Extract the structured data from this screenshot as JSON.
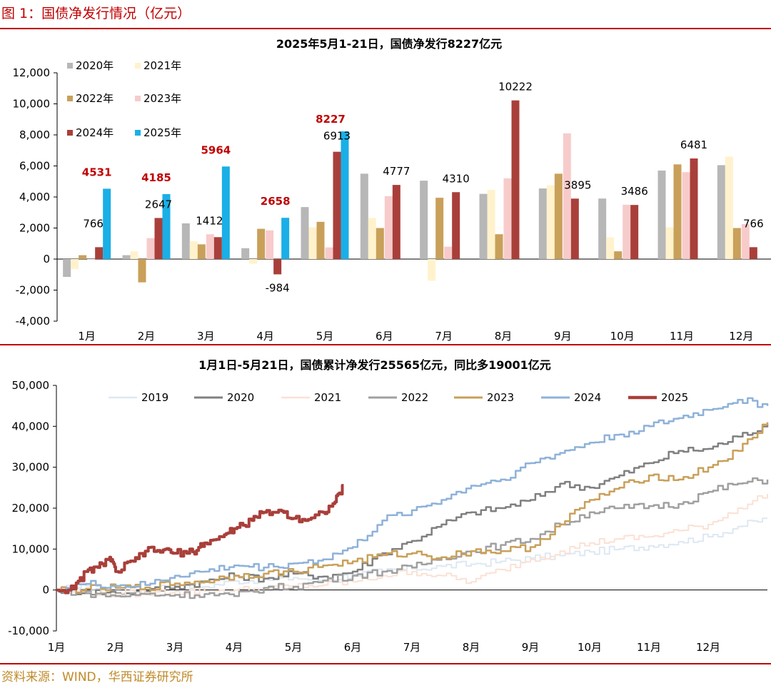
{
  "figure_title": "图 1：国债净发行情况（亿元）",
  "source": "资料来源：WIND，华西证券研究所",
  "chart_data": [
    {
      "type": "bar",
      "title": "2025年5月1-21日，国债净发行8227亿元",
      "categories": [
        "1月",
        "2月",
        "3月",
        "4月",
        "5月",
        "6月",
        "7月",
        "8月",
        "9月",
        "10月",
        "11月",
        "12月"
      ],
      "y_tick_labels": [
        "12,000",
        "10,000",
        "8,000",
        "6,000",
        "4,000",
        "2,000",
        "0",
        "-2,000",
        "-4,000"
      ],
      "ylim": [
        -4000,
        12000
      ],
      "legend_placement": "top-left",
      "grid": false,
      "series": [
        {
          "name": "2020年",
          "color": "#b7b7b7",
          "values": [
            -1150,
            250,
            2300,
            700,
            3350,
            5500,
            5050,
            4200,
            4550,
            3900,
            5700,
            6050
          ]
        },
        {
          "name": "2021年",
          "color": "#fff2cc",
          "values": [
            -650,
            500,
            1150,
            -300,
            2050,
            2650,
            -1400,
            4450,
            4750,
            1400,
            2050,
            6600
          ]
        },
        {
          "name": "2022年",
          "color": "#c9a05a",
          "values": [
            250,
            -1500,
            950,
            1950,
            2400,
            2000,
            3950,
            1600,
            5500,
            500,
            6100,
            2000
          ]
        },
        {
          "name": "2023年",
          "color": "#f8cbcb",
          "values": [
            0,
            1350,
            1600,
            1850,
            750,
            4050,
            800,
            5200,
            8100,
            3500,
            5600,
            2250
          ]
        },
        {
          "name": "2024年",
          "color": "#a93f3a",
          "values": [
            766,
            2647,
            1412,
            -984,
            6913,
            4777,
            4310,
            10222,
            3895,
            3486,
            6481,
            766
          ]
        },
        {
          "name": "2025年",
          "color": "#1aafe6",
          "values": [
            4531,
            4185,
            5964,
            2658,
            8227,
            null,
            null,
            null,
            null,
            null,
            null,
            null
          ]
        }
      ],
      "data_labels_2024": [
        "766",
        "2647",
        "1412",
        "-984",
        "6913",
        "4777",
        "4310",
        "10222",
        "3895",
        "3486",
        "6481",
        "766"
      ],
      "data_labels_2025": [
        "4531",
        "4185",
        "5964",
        "2658",
        "8227"
      ]
    },
    {
      "type": "line",
      "title": "1月1日-5月21日，国债累计净发行25565亿元，同比多19001亿元",
      "x_tick_labels": [
        "1月",
        "2月",
        "3月",
        "4月",
        "5月",
        "6月",
        "7月",
        "8月",
        "9月",
        "10月",
        "11月",
        "12月"
      ],
      "y_tick_labels": [
        "50,000",
        "40,000",
        "30,000",
        "20,000",
        "10,000",
        "0",
        "-10,000"
      ],
      "ylim": [
        -10000,
        50000
      ],
      "xlim": [
        0,
        12
      ],
      "legend_placement": "top",
      "grid": false,
      "series": [
        {
          "name": "2019",
          "color": "#dde8f3",
          "width": 2,
          "points": [
            [
              0,
              0
            ],
            [
              0.5,
              1000
            ],
            [
              1,
              -200
            ],
            [
              1.5,
              300
            ],
            [
              2,
              1200
            ],
            [
              2.5,
              800
            ],
            [
              3,
              2200
            ],
            [
              3.5,
              2600
            ],
            [
              4,
              3000
            ],
            [
              4.5,
              2400
            ],
            [
              5,
              3800
            ],
            [
              5.5,
              4500
            ],
            [
              6,
              5200
            ],
            [
              6.5,
              5800
            ],
            [
              7,
              6300
            ],
            [
              7.5,
              7000
            ],
            [
              8,
              7800
            ],
            [
              8.5,
              8400
            ],
            [
              9,
              9300
            ],
            [
              9.5,
              10000
            ],
            [
              10,
              10800
            ],
            [
              10.5,
              11800
            ],
            [
              11,
              13000
            ],
            [
              11.5,
              15500
            ],
            [
              12,
              17500
            ]
          ]
        },
        {
          "name": "2020",
          "color": "#808080",
          "width": 2.5,
          "points": [
            [
              0,
              0
            ],
            [
              0.5,
              -400
            ],
            [
              1,
              -800
            ],
            [
              1.5,
              -300
            ],
            [
              2,
              800
            ],
            [
              2.5,
              2000
            ],
            [
              3,
              3500
            ],
            [
              3.5,
              2800
            ],
            [
              4,
              4000
            ],
            [
              4.5,
              3300
            ],
            [
              5,
              4500
            ],
            [
              5.5,
              9000
            ],
            [
              6,
              12000
            ],
            [
              6.5,
              16000
            ],
            [
              7,
              19000
            ],
            [
              7.5,
              20000
            ],
            [
              8,
              22000
            ],
            [
              8.5,
              26000
            ],
            [
              9,
              25000
            ],
            [
              9.5,
              28000
            ],
            [
              10,
              31000
            ],
            [
              10.5,
              34000
            ],
            [
              11,
              34500
            ],
            [
              11.5,
              37500
            ],
            [
              12,
              40500
            ]
          ]
        },
        {
          "name": "2021",
          "color": "#fbe1d4",
          "width": 2,
          "points": [
            [
              0,
              0
            ],
            [
              0.5,
              -600
            ],
            [
              1,
              -1000
            ],
            [
              1.5,
              -700
            ],
            [
              2,
              -400
            ],
            [
              2.5,
              -300
            ],
            [
              3,
              0
            ],
            [
              3.5,
              300
            ],
            [
              4,
              900
            ],
            [
              4.5,
              1200
            ],
            [
              5,
              2000
            ],
            [
              5.5,
              3500
            ],
            [
              6,
              4500
            ],
            [
              6.5,
              3500
            ],
            [
              7,
              2000
            ],
            [
              7.5,
              5000
            ],
            [
              8,
              7500
            ],
            [
              8.5,
              9500
            ],
            [
              9,
              11500
            ],
            [
              9.5,
              12500
            ],
            [
              10,
              13000
            ],
            [
              10.5,
              14500
            ],
            [
              11,
              16000
            ],
            [
              11.5,
              20000
            ],
            [
              12,
              23500
            ]
          ]
        },
        {
          "name": "2022",
          "color": "#a0a0a0",
          "width": 2.5,
          "points": [
            [
              0,
              0
            ],
            [
              0.5,
              -800
            ],
            [
              1,
              -1500
            ],
            [
              1.5,
              -1000
            ],
            [
              2,
              -1200
            ],
            [
              2.5,
              -1000
            ],
            [
              3,
              -1500
            ],
            [
              3.5,
              500
            ],
            [
              4,
              800
            ],
            [
              4.5,
              2300
            ],
            [
              5,
              3500
            ],
            [
              5.5,
              4500
            ],
            [
              6,
              5500
            ],
            [
              6.5,
              8000
            ],
            [
              7,
              9500
            ],
            [
              7.5,
              11000
            ],
            [
              8,
              12500
            ],
            [
              8.5,
              16000
            ],
            [
              9,
              19000
            ],
            [
              9.5,
              20000
            ],
            [
              10,
              20500
            ],
            [
              10.5,
              21000
            ],
            [
              11,
              24000
            ],
            [
              11.5,
              26000
            ],
            [
              12,
              27000
            ]
          ]
        },
        {
          "name": "2023",
          "color": "#c9a05a",
          "width": 2.5,
          "points": [
            [
              0,
              0
            ],
            [
              0.5,
              300
            ],
            [
              1,
              500
            ],
            [
              1.5,
              600
            ],
            [
              2,
              1600
            ],
            [
              2.5,
              2200
            ],
            [
              3,
              3500
            ],
            [
              3.5,
              4000
            ],
            [
              4,
              4500
            ],
            [
              4.5,
              6000
            ],
            [
              5,
              7000
            ],
            [
              5.5,
              8500
            ],
            [
              6,
              9000
            ],
            [
              6.5,
              8000
            ],
            [
              7,
              9500
            ],
            [
              7.5,
              9500
            ],
            [
              8,
              10500
            ],
            [
              8.5,
              16000
            ],
            [
              9,
              22000
            ],
            [
              9.5,
              25000
            ],
            [
              10,
              28000
            ],
            [
              10.5,
              27000
            ],
            [
              11,
              30000
            ],
            [
              11.5,
              34000
            ],
            [
              12,
              41000
            ]
          ]
        },
        {
          "name": "2024",
          "color": "#8eb2d9",
          "width": 2.5,
          "points": [
            [
              0,
              0
            ],
            [
              0.5,
              1500
            ],
            [
              1,
              1000
            ],
            [
              1.5,
              1200
            ],
            [
              2,
              3500
            ],
            [
              2.5,
              4500
            ],
            [
              3,
              6000
            ],
            [
              3.5,
              5500
            ],
            [
              4,
              6500
            ],
            [
              4.5,
              7500
            ],
            [
              5,
              10500
            ],
            [
              5.5,
              17000
            ],
            [
              6,
              19500
            ],
            [
              6.5,
              22000
            ],
            [
              7,
              25500
            ],
            [
              7.5,
              27000
            ],
            [
              8,
              31000
            ],
            [
              8.5,
              33500
            ],
            [
              9,
              36000
            ],
            [
              9.5,
              38000
            ],
            [
              10,
              40000
            ],
            [
              10.5,
              42000
            ],
            [
              11,
              44000
            ],
            [
              11.5,
              46500
            ],
            [
              12,
              45000
            ]
          ]
        },
        {
          "name": "2025",
          "color": "#a93f3a",
          "width": 4,
          "points": [
            [
              0,
              0
            ],
            [
              0.3,
              300
            ],
            [
              0.5,
              4500
            ],
            [
              0.7,
              5500
            ],
            [
              0.9,
              8000
            ],
            [
              1,
              4500
            ],
            [
              1.3,
              7000
            ],
            [
              1.5,
              9500
            ],
            [
              1.8,
              9800
            ],
            [
              2,
              9000
            ],
            [
              2.3,
              9300
            ],
            [
              2.5,
              11500
            ],
            [
              2.8,
              13000
            ],
            [
              3,
              15000
            ],
            [
              3.3,
              17000
            ],
            [
              3.5,
              19000
            ],
            [
              3.8,
              19300
            ],
            [
              4,
              17500
            ],
            [
              4.3,
              17600
            ],
            [
              4.5,
              19000
            ],
            [
              4.7,
              21500
            ],
            [
              4.85,
              25565
            ]
          ]
        }
      ]
    }
  ]
}
